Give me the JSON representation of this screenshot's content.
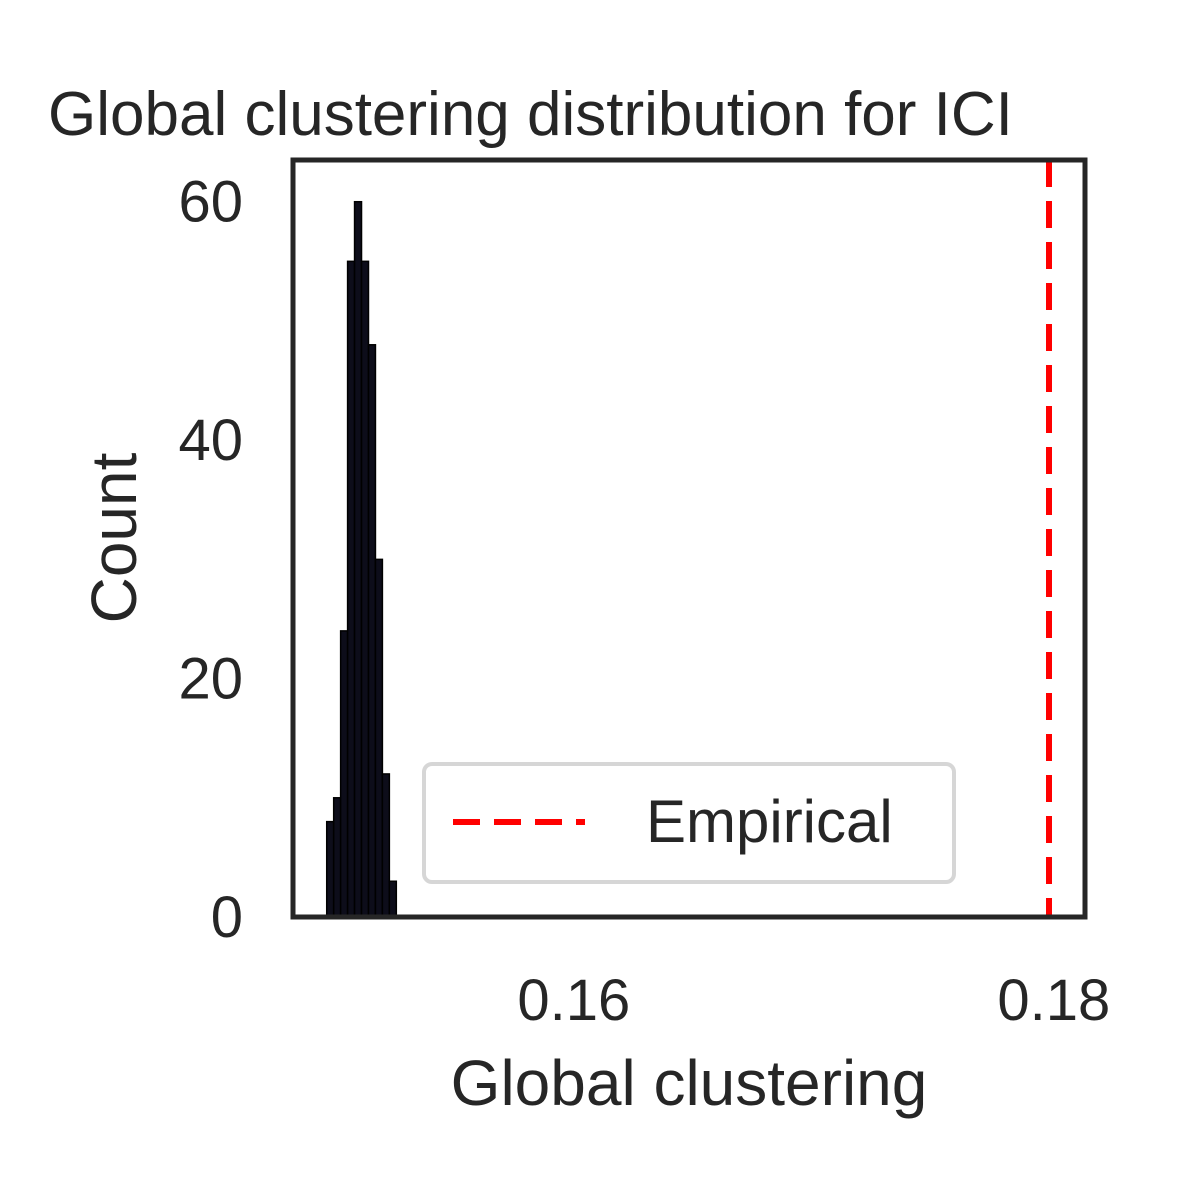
{
  "chart_data": {
    "type": "bar",
    "title": "Global clustering distribution for ICI",
    "xlabel": "Global clustering",
    "ylabel": "Count",
    "xlim": [
      0.1483,
      0.1813
    ],
    "ylim": [
      0,
      63.5
    ],
    "xticks": [
      {
        "value": 0.16,
        "label": "0.16"
      },
      {
        "value": 0.18,
        "label": "0.18"
      }
    ],
    "yticks": [
      {
        "value": 0,
        "label": "0"
      },
      {
        "value": 20,
        "label": "20"
      },
      {
        "value": 40,
        "label": "40"
      },
      {
        "value": 60,
        "label": "60"
      }
    ],
    "bin_width": 0.00029,
    "bins": [
      {
        "x": 0.14985,
        "count": 8
      },
      {
        "x": 0.15014,
        "count": 10
      },
      {
        "x": 0.15043,
        "count": 24
      },
      {
        "x": 0.15072,
        "count": 55
      },
      {
        "x": 0.15101,
        "count": 60
      },
      {
        "x": 0.1513,
        "count": 55
      },
      {
        "x": 0.15159,
        "count": 48
      },
      {
        "x": 0.15188,
        "count": 30
      },
      {
        "x": 0.15217,
        "count": 12
      },
      {
        "x": 0.15246,
        "count": 3
      }
    ],
    "bar_color": "#0d0d1a",
    "empirical_line": {
      "x": 0.1798,
      "color": "#ff0000",
      "style": "dashed"
    },
    "legend": {
      "entries": [
        "Empirical"
      ],
      "placement": "lower-right"
    },
    "grid": false
  }
}
